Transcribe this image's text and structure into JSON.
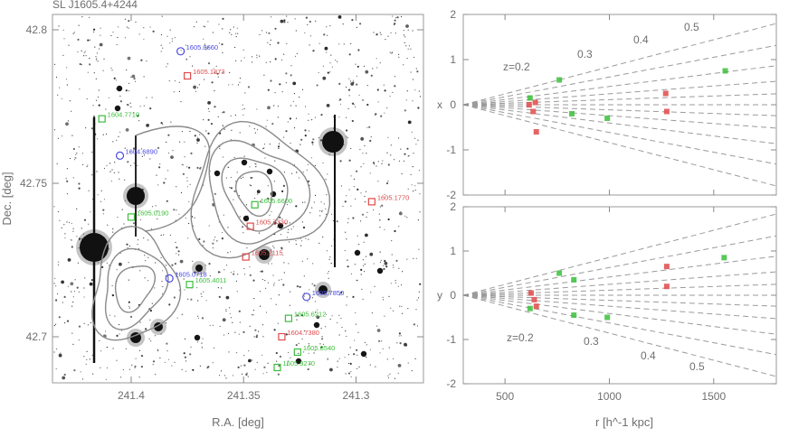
{
  "field_panel": {
    "title": "SL J1605.4+4244",
    "xlabel": "R.A. [deg]",
    "ylabel": "Dec. [deg]",
    "x_ticks": [
      "241.4",
      "241.35",
      "241.3"
    ],
    "y_ticks": [
      "42.8",
      "42.75",
      "42.7"
    ],
    "x_range": [
      241.435,
      241.27
    ],
    "y_range": [
      42.685,
      42.805
    ],
    "tick_x_values": [
      241.4,
      241.35,
      241.3
    ],
    "tick_y_values": [
      42.8,
      42.75,
      42.7
    ],
    "galaxy_labels": [
      {
        "text": "1605.0660",
        "color": "#4a4ae0",
        "ra": 241.378,
        "dec": 42.793
      },
      {
        "text": "1605.1873",
        "color": "#e04a4a",
        "ra": 241.375,
        "dec": 42.785
      },
      {
        "text": "1604.7710",
        "color": "#3bbf3b",
        "ra": 241.413,
        "dec": 42.771
      },
      {
        "text": "1604.6890",
        "color": "#4a4ae0",
        "ra": 241.405,
        "dec": 42.759
      },
      {
        "text": "1605.0190",
        "color": "#3bbf3b",
        "ra": 241.4,
        "dec": 42.739
      },
      {
        "text": "1605.6600",
        "color": "#3bbf3b",
        "ra": 241.345,
        "dec": 42.743
      },
      {
        "text": "1605.7330",
        "color": "#e04a4a",
        "ra": 241.347,
        "dec": 42.736
      },
      {
        "text": "1605.2115",
        "color": "#e04a4a",
        "ra": 241.349,
        "dec": 42.726
      },
      {
        "text": "1605.0718",
        "color": "#4a4ae0",
        "ra": 241.383,
        "dec": 42.719
      },
      {
        "text": "1605.4011",
        "color": "#3bbf3b",
        "ra": 241.374,
        "dec": 42.717
      },
      {
        "text": "1605.7850",
        "color": "#4a4ae0",
        "ra": 241.322,
        "dec": 42.713
      },
      {
        "text": "1605.6212",
        "color": "#3bbf3b",
        "ra": 241.33,
        "dec": 42.706
      },
      {
        "text": "1604.7380",
        "color": "#e04a4a",
        "ra": 241.333,
        "dec": 42.7
      },
      {
        "text": "1605.8540",
        "color": "#3bbf3b",
        "ra": 241.326,
        "dec": 42.695
      },
      {
        "text": "1605.9270",
        "color": "#3bbf3b",
        "ra": 241.335,
        "dec": 42.69
      },
      {
        "text": "1605.1770",
        "color": "#e04a4a",
        "ra": 241.293,
        "dec": 42.744
      }
    ]
  },
  "chart_data": [
    {
      "type": "scatter",
      "title": "",
      "xlabel": "r [h^-1 kpc]",
      "ylabel": "x",
      "xlim": [
        300,
        1800
      ],
      "ylim": [
        -2,
        2
      ],
      "x_ticks": [
        500,
        1000,
        1500
      ],
      "y_ticks": [
        -2,
        -1,
        0,
        1,
        2
      ],
      "show_x_tick_labels": false,
      "redshift_wedges": [
        {
          "z": 0.2,
          "label": "z=0.2"
        },
        {
          "z": 0.3,
          "label": "0.3"
        },
        {
          "z": 0.4,
          "label": "0.4"
        },
        {
          "z": 0.5,
          "label": "0.5"
        }
      ],
      "series": [
        {
          "color": "#e04a4a",
          "points": [
            [
              615,
              0.0
            ],
            [
              635,
              -0.15
            ],
            [
              645,
              0.05
            ],
            [
              650,
              -0.6
            ],
            [
              1270,
              0.25
            ],
            [
              1275,
              -0.15
            ]
          ]
        },
        {
          "color": "#3bbf3b",
          "points": [
            [
              620,
              0.15
            ],
            [
              760,
              0.55
            ],
            [
              820,
              -0.2
            ],
            [
              990,
              -0.3
            ],
            [
              1555,
              0.75
            ]
          ]
        }
      ]
    },
    {
      "type": "scatter",
      "title": "",
      "xlabel": "r [h^-1 kpc]",
      "ylabel": "y",
      "xlim": [
        300,
        1800
      ],
      "ylim": [
        -2,
        2
      ],
      "x_ticks": [
        500,
        1000,
        1500
      ],
      "y_ticks": [
        -2,
        -1,
        0,
        1,
        2
      ],
      "x_tick_labels": [
        "500",
        "1000",
        "1500"
      ],
      "redshift_wedges": [
        {
          "z": 0.2,
          "label": "z=0.2"
        },
        {
          "z": 0.3,
          "label": "0.3"
        },
        {
          "z": 0.4,
          "label": "0.4"
        },
        {
          "z": 0.5,
          "label": "0.5"
        }
      ],
      "series": [
        {
          "color": "#e04a4a",
          "points": [
            [
              625,
              0.05
            ],
            [
              640,
              -0.1
            ],
            [
              650,
              -0.25
            ],
            [
              1275,
              0.65
            ],
            [
              1275,
              0.2
            ]
          ]
        },
        {
          "color": "#3bbf3b",
          "points": [
            [
              620,
              -0.3
            ],
            [
              760,
              0.5
            ],
            [
              830,
              0.35
            ],
            [
              830,
              -0.45
            ],
            [
              990,
              -0.5
            ],
            [
              1550,
              0.85
            ]
          ]
        }
      ]
    }
  ]
}
